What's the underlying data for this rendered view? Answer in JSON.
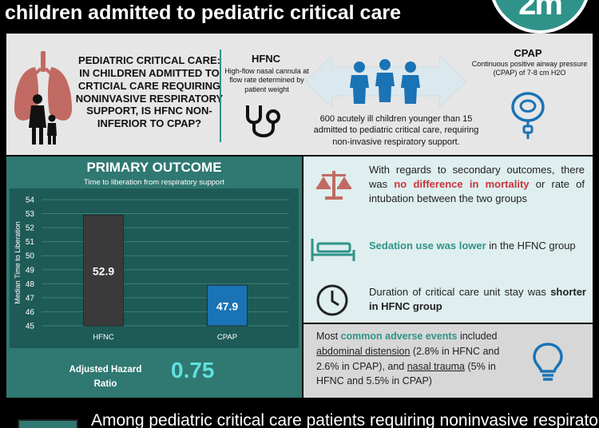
{
  "header": {
    "title": "children admitted to pediatric critical care",
    "logo_text": "2m"
  },
  "top": {
    "question": "PEDIATRIC CRITICAL CARE: IN CHILDREN ADMITTED TO CRTICIAL CARE REQUIRING NONINVASIVE RESPIRATORY SUPPORT, IS HFNC NON-INFERIOR TO CPAP?",
    "hfnc_title": "HFNC",
    "hfnc_desc": "High-flow nasal cannula at flow rate determined by patient weight",
    "cpap_title": "CPAP",
    "cpap_desc": "Continuous positive airway pressure (CPAP) of 7-8 cm H2O",
    "population": "600 acutely ill children younger than 15 admitted to pediatric critical care, requiring non-invasive respiratory support."
  },
  "outcome": {
    "title": "PRIMARY OUTCOME",
    "subtitle": "Time to liberation from respiratory support",
    "ahr_label": "Adjusted Hazard Ratio",
    "ahr_value": "0.75"
  },
  "chart_data": {
    "type": "bar",
    "categories": [
      "HFNC",
      "CPAP"
    ],
    "values": [
      52.9,
      47.9
    ],
    "value_labels": [
      "52.9",
      "47.9"
    ],
    "ylabel": "Median Time to Liberation",
    "ylim": [
      45,
      54
    ],
    "yticks": [
      45,
      46,
      47,
      48,
      49,
      50,
      51,
      52,
      53,
      54
    ],
    "colors": [
      "#3a3a3a",
      "#1a73b5"
    ],
    "grid": true
  },
  "secondary": {
    "s1_pre": "With regards to secondary outcomes, there was ",
    "s1_hl": "no difference in mortality",
    "s1_post": " or rate of intubation between the two groups",
    "s2_hl": "Sedation use was lower",
    "s2_post": " in the HFNC group",
    "s3_pre": "Duration of critical care unit stay was ",
    "s3_hl": "shorter in HFNC group"
  },
  "adverse": {
    "pre": "Most ",
    "hl": "common adverse events",
    "mid": " included ",
    "u1": "abdominal distension",
    "t1": " (2.8% in HFNC and 2.6% in CPAP), and ",
    "u2": "nasal trauma",
    "t2": " (5% in HFNC and 5.5% in CPAP)"
  },
  "bottom": {
    "text": "Among pediatric critical care patients requiring noninvasive respiratory"
  },
  "colors": {
    "teal": "#2f9389",
    "dark_teal": "#307872",
    "red": "#c9343c",
    "blue": "#1a73b5",
    "icon_red": "#c16a63"
  },
  "icons": [
    "lungs-mother-child-icon",
    "stethoscope-icon",
    "children-icon",
    "double-arrow-icon",
    "cpap-mask-icon",
    "scales-icon",
    "bed-icon",
    "clock-icon",
    "lightbulb-icon"
  ]
}
